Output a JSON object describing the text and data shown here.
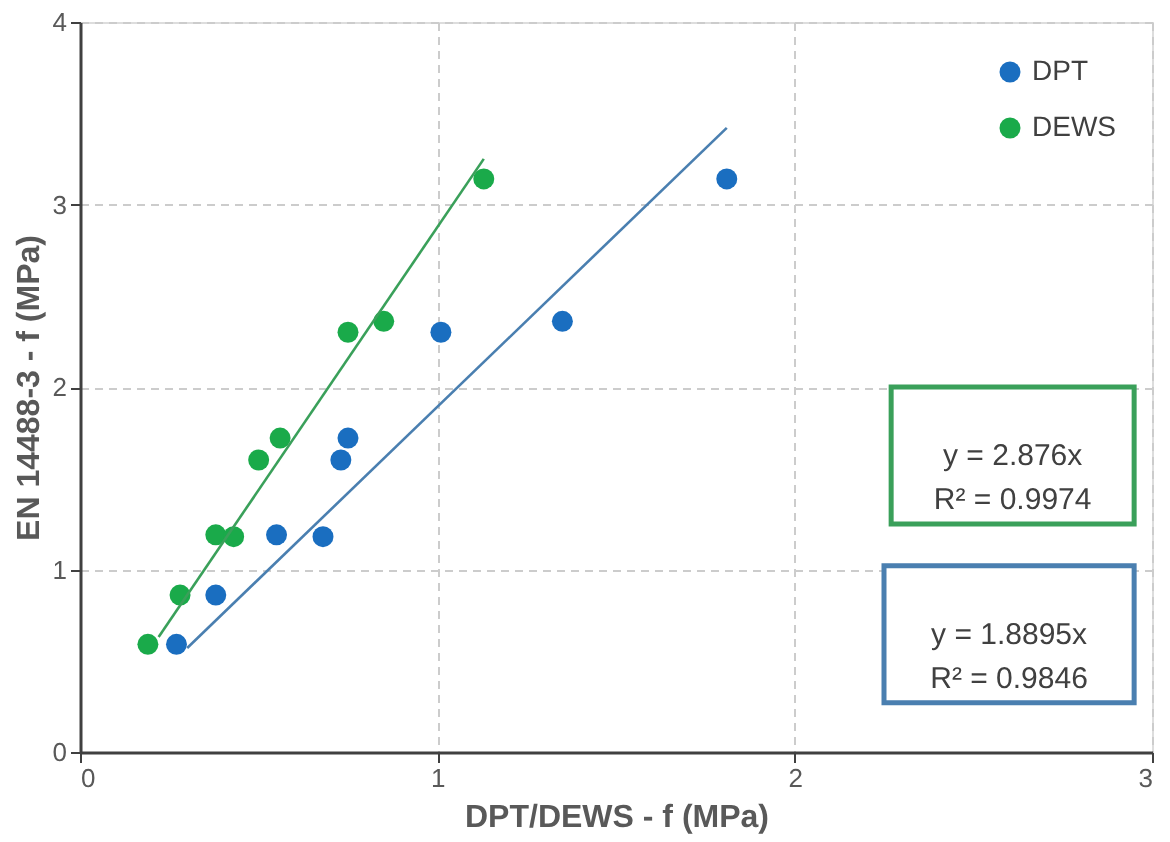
{
  "chart_data": {
    "type": "scatter",
    "xlabel": "DPT/DEWS - f (MPa)",
    "ylabel": "EN 14488-3 - f (MPa)",
    "series": [
      {
        "name": "DPT",
        "color": "#1a6ec0",
        "x": [
          0.27,
          0.38,
          0.55,
          0.68,
          0.73,
          0.75,
          1.01,
          1.35,
          1.81
        ],
        "values": [
          0.59,
          0.86,
          1.19,
          1.18,
          1.6,
          1.72,
          2.3,
          2.36,
          3.14
        ]
      },
      {
        "name": "DEWS",
        "color": "#1aaa4a",
        "x": [
          0.19,
          0.28,
          0.38,
          0.43,
          0.5,
          0.56,
          0.75,
          0.85,
          1.13
        ],
        "values": [
          0.59,
          0.86,
          1.19,
          1.18,
          1.6,
          1.72,
          2.3,
          2.36,
          3.14
        ]
      },
      {
        "type": "line",
        "marker": "none",
        "line_style": "solid",
        "color": "#3aa05a",
        "x": [
          0.22,
          1.13
        ],
        "values": [
          0.63,
          3.25
        ]
      },
      {
        "type": "line",
        "marker": "none",
        "line_style": "solid",
        "color": "#4a7fb0",
        "x": [
          0.3,
          1.81
        ],
        "values": [
          0.57,
          3.42
        ]
      }
    ],
    "annotations": [
      "y = 2.876x\nR² = 0.9974",
      "y = 1.8895x\nR² = 0.9846"
    ],
    "xlim": [
      0,
      3
    ],
    "ylim": [
      0,
      4
    ],
    "xticks": [
      0,
      1,
      2,
      3
    ],
    "yticks": [
      0,
      1,
      2,
      3,
      4
    ],
    "grid": true,
    "legend": "top right",
    "marker": "circle"
  }
}
